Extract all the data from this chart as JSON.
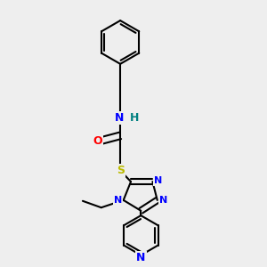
{
  "bg_color": "#eeeeee",
  "bond_color": "#000000",
  "bond_width": 1.5,
  "atom_colors": {
    "N": "#0000ff",
    "O": "#ff0000",
    "S": "#bbbb00",
    "H_amide": "#008080",
    "C": "#000000"
  },
  "font_size_atom": 9
}
